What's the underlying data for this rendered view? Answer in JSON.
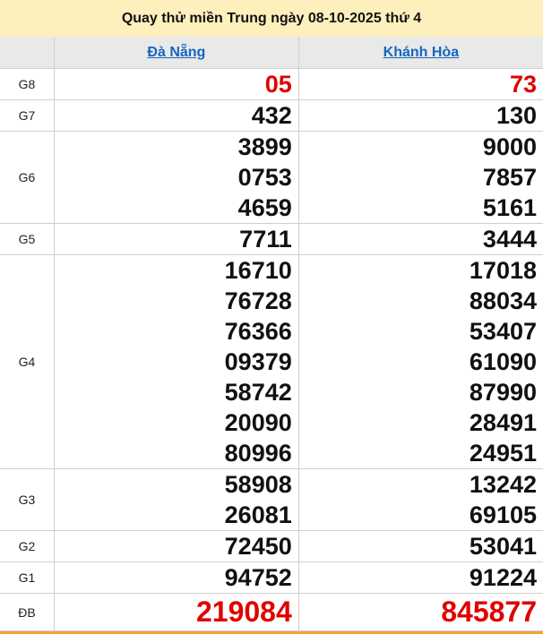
{
  "title": "Quay thử miền Trung ngày 08-10-2025 thứ 4",
  "provinces": [
    "Đà Nẵng",
    "Khánh Hòa"
  ],
  "colors": {
    "header_bg": "#fdf0bd",
    "link": "#1565c0",
    "highlight": "#e00000"
  },
  "prizes": [
    {
      "label": "G8",
      "highlight": true,
      "values": [
        [
          "05"
        ],
        [
          "73"
        ]
      ]
    },
    {
      "label": "G7",
      "values": [
        [
          "432"
        ],
        [
          "130"
        ]
      ]
    },
    {
      "label": "G6",
      "values": [
        [
          "3899",
          "0753",
          "4659"
        ],
        [
          "9000",
          "7857",
          "5161"
        ]
      ]
    },
    {
      "label": "G5",
      "values": [
        [
          "7711"
        ],
        [
          "3444"
        ]
      ]
    },
    {
      "label": "G4",
      "values": [
        [
          "16710",
          "76728",
          "76366",
          "09379",
          "58742",
          "20090",
          "80996"
        ],
        [
          "17018",
          "88034",
          "53407",
          "61090",
          "87990",
          "28491",
          "24951"
        ]
      ]
    },
    {
      "label": "G3",
      "values": [
        [
          "58908",
          "26081"
        ],
        [
          "13242",
          "69105"
        ]
      ]
    },
    {
      "label": "G2",
      "values": [
        [
          "72450"
        ],
        [
          "53041"
        ]
      ]
    },
    {
      "label": "G1",
      "values": [
        [
          "94752"
        ],
        [
          "91224"
        ]
      ]
    },
    {
      "label": "ĐB",
      "highlight": true,
      "big": true,
      "values": [
        [
          "219084"
        ],
        [
          "845877"
        ]
      ]
    }
  ]
}
